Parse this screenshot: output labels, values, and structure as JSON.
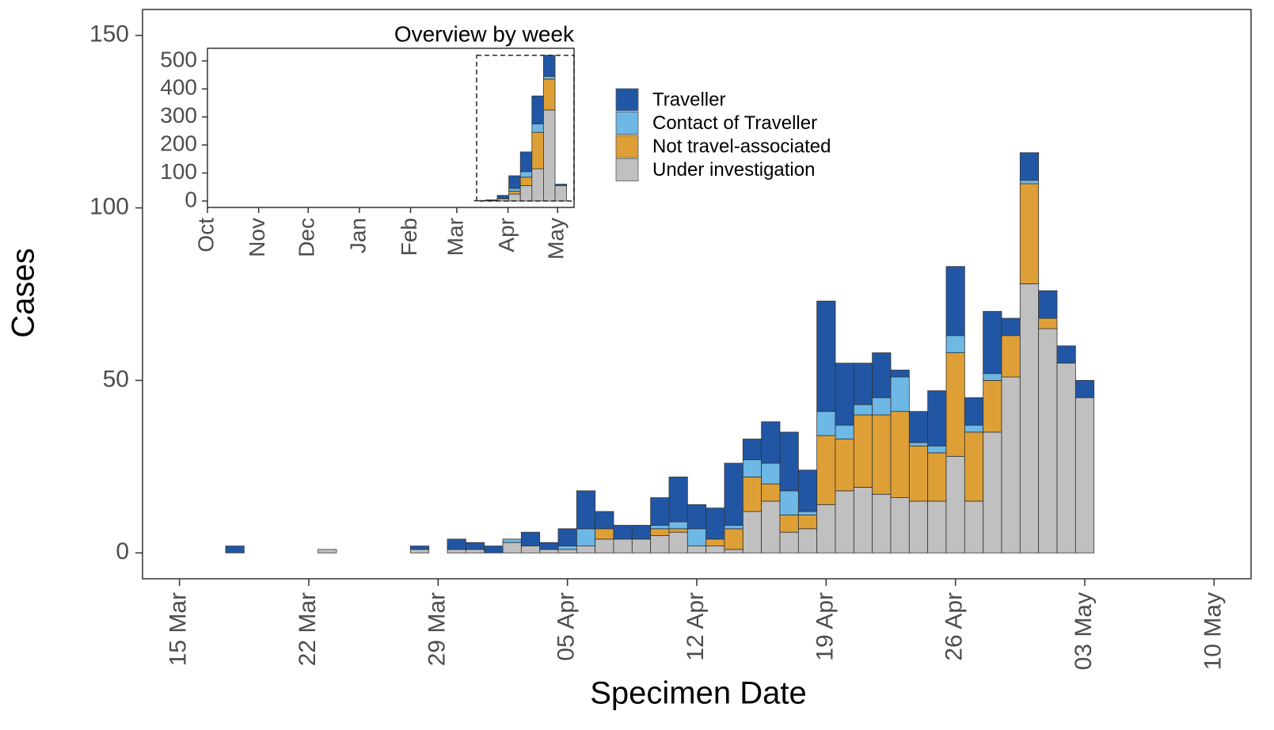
{
  "chart_data": [
    {
      "type": "bar",
      "stacked": true,
      "xlabel": "Specimen Date",
      "ylabel": "Cases",
      "legend": true,
      "x": [
        "18 Mar",
        "23 Mar",
        "28 Mar",
        "30 Mar",
        "31 Mar",
        "01 Apr",
        "02 Apr",
        "03 Apr",
        "04 Apr",
        "05 Apr",
        "06 Apr",
        "07 Apr",
        "08 Apr",
        "09 Apr",
        "10 Apr",
        "11 Apr",
        "12 Apr",
        "13 Apr",
        "14 Apr",
        "15 Apr",
        "16 Apr",
        "17 Apr",
        "18 Apr",
        "19 Apr",
        "20 Apr",
        "21 Apr",
        "22 Apr",
        "23 Apr",
        "24 Apr",
        "25 Apr",
        "26 Apr",
        "27 Apr",
        "28 Apr",
        "29 Apr",
        "30 Apr",
        "01 May",
        "02 May",
        "03 May"
      ],
      "series": [
        {
          "name": "Traveller",
          "color": "#2156a5",
          "values": [
            2,
            0,
            1,
            3,
            2,
            2,
            0,
            4,
            2,
            5,
            11,
            5,
            4,
            4,
            8,
            13,
            7,
            9,
            18,
            6,
            12,
            17,
            12,
            32,
            18,
            12,
            13,
            2,
            9,
            16,
            20,
            8,
            18,
            5,
            8,
            8,
            5,
            5
          ]
        },
        {
          "name": "Contact of Traveller",
          "color": "#6db8e5",
          "values": [
            0,
            0,
            0,
            0,
            0,
            0,
            1,
            0,
            0,
            1,
            5,
            0,
            0,
            0,
            1,
            2,
            5,
            0,
            1,
            5,
            6,
            7,
            1,
            7,
            4,
            3,
            5,
            10,
            1,
            2,
            5,
            2,
            2,
            0,
            1,
            0,
            0,
            0
          ]
        },
        {
          "name": "Not travel-associated",
          "color": "#dea036",
          "values": [
            0,
            0,
            0,
            0,
            0,
            0,
            0,
            0,
            0,
            0,
            0,
            3,
            0,
            0,
            2,
            1,
            0,
            2,
            6,
            10,
            5,
            5,
            4,
            20,
            15,
            21,
            23,
            25,
            16,
            14,
            30,
            20,
            15,
            12,
            29,
            3,
            0,
            0
          ]
        },
        {
          "name": "Under investigation",
          "color": "#c0c0c0",
          "values": [
            0,
            1,
            1,
            1,
            1,
            0,
            3,
            2,
            1,
            1,
            2,
            4,
            4,
            4,
            5,
            6,
            2,
            2,
            1,
            12,
            15,
            6,
            7,
            14,
            18,
            19,
            17,
            16,
            15,
            15,
            28,
            15,
            35,
            51,
            78,
            65,
            55,
            45
          ]
        }
      ],
      "xlim": [
        "13 Mar",
        "12 May"
      ],
      "xticks": [
        "15 Mar",
        "22 Mar",
        "29 Mar",
        "05 Apr",
        "12 Apr",
        "19 Apr",
        "26 Apr",
        "03 May",
        "10 May"
      ],
      "ylim": [
        -7.5,
        157.5
      ],
      "yticks": [
        0,
        50,
        100,
        150
      ]
    },
    {
      "type": "bar",
      "stacked": true,
      "title": "Overview by week",
      "x": [
        "15 Mar",
        "22 Mar",
        "29 Mar",
        "05 Apr",
        "12 Apr",
        "19 Apr",
        "26 Apr",
        "03 May"
      ],
      "series": [
        {
          "color": "#2156a5",
          "values": [
            2,
            2,
            11,
            45,
            70,
            100,
            75,
            5
          ]
        },
        {
          "color": "#6db8e5",
          "values": [
            0,
            0,
            1,
            10,
            20,
            30,
            10,
            0
          ]
        },
        {
          "color": "#dea036",
          "values": [
            0,
            0,
            0,
            10,
            30,
            130,
            110,
            0
          ]
        },
        {
          "color": "#c0c0c0",
          "values": [
            0,
            2,
            8,
            25,
            55,
            115,
            325,
            55
          ]
        }
      ],
      "xlim": [
        "01 Oct",
        "11 May"
      ],
      "xticks": [
        "Oct",
        "Nov",
        "Dec",
        "Jan",
        "Feb",
        "Mar",
        "Apr",
        "May"
      ],
      "ylim": [
        -23,
        545
      ],
      "yticks": [
        0,
        100,
        200,
        300,
        400,
        500
      ]
    }
  ]
}
